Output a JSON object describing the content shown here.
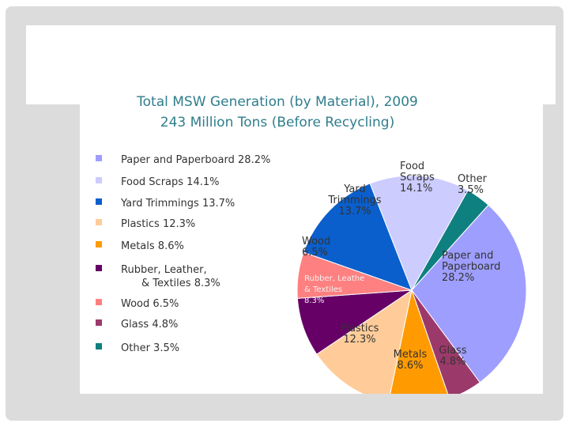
{
  "chart_data": {
    "type": "pie",
    "title": "Total MSW Generation (by Material), 2009",
    "subtitle": "243 Million Tons (Before Recycling)",
    "slices": [
      {
        "label": "Paper and Paperboard",
        "value": 28.2,
        "color": "#9e9eff",
        "legend_text": "Paper and Paperboard  28.2%",
        "slice_text": [
          "Paper and",
          "Paperboard",
          "28.2%"
        ]
      },
      {
        "label": "Glass",
        "value": 4.8,
        "color": "#9b3a6a",
        "legend_text": "Glass 4.8%",
        "slice_text": [
          "Glass",
          "4.8%"
        ]
      },
      {
        "label": "Metals",
        "value": 8.6,
        "color": "#ff9b00",
        "legend_text": "Metals 8.6%",
        "slice_text": [
          "Metals",
          "8.6%"
        ]
      },
      {
        "label": "Plastics",
        "value": 12.3,
        "color": "#ffcc99",
        "legend_text": "Plastics 12.3%",
        "slice_text": [
          "Plastics",
          "12.3%"
        ]
      },
      {
        "label": "Rubber, Leather, & Textiles",
        "value": 8.3,
        "color": "#660066",
        "legend_text": [
          "Rubber, Leather,",
          "& Textiles 8.3%"
        ],
        "slice_text": [
          "Rubber, Leathe",
          "& Textiles",
          "8.3%"
        ]
      },
      {
        "label": "Wood",
        "value": 6.5,
        "color": "#ff8080",
        "legend_text": "Wood 6.5%",
        "slice_text": [
          "Wood",
          "6.5%"
        ]
      },
      {
        "label": "Yard Trimmings",
        "value": 13.7,
        "color": "#0a5fcc",
        "legend_text": "Yard Trimmings 13.7%",
        "slice_text": [
          "Yard",
          "Trimmings",
          "13.7%"
        ]
      },
      {
        "label": "Food Scraps",
        "value": 14.1,
        "color": "#ccccff",
        "legend_text": "Food Scraps 14.1%",
        "slice_text": [
          "Food",
          "Scraps",
          "14.1%"
        ]
      },
      {
        "label": "Other",
        "value": 3.5,
        "color": "#0f8080",
        "legend_text": "Other 3.5%",
        "slice_text": [
          "Other",
          "3.5%"
        ]
      }
    ],
    "legend_order": [
      "Paper and Paperboard",
      "Food Scraps",
      "Yard Trimmings",
      "Plastics",
      "Metals",
      "Rubber, Leather, & Textiles",
      "Wood",
      "Glass",
      "Other"
    ],
    "legend_position": "left",
    "start": "top-right, clockwise"
  },
  "colors": {
    "frame": "#dcdcdc",
    "title": "#2f7e8c",
    "text": "#333333"
  }
}
